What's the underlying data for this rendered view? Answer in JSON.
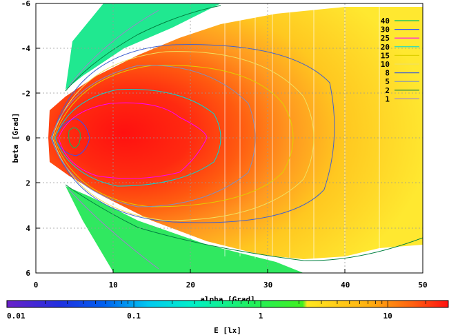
{
  "chart_data": {
    "type": "heatmap",
    "xlabel": "alpha [Grad]",
    "ylabel": "beta [Grad]",
    "xlim": [
      0,
      50
    ],
    "ylim": [
      6,
      -6
    ],
    "x_ticks": [
      "0",
      "10",
      "20",
      "30",
      "40",
      "50"
    ],
    "y_ticks": [
      "-6",
      "-4",
      "-2",
      "0",
      "2",
      "4",
      "6"
    ],
    "grid": true,
    "colorbar": {
      "label": "E [lx]",
      "scale": "log",
      "range": [
        0.01,
        30
      ],
      "ticks": [
        "0.01",
        "0.1",
        "1",
        "10"
      ]
    },
    "contour_legend": {
      "placement": "top-right",
      "levels": [
        {
          "label": "40",
          "color": "#00c060"
        },
        {
          "label": "30",
          "color": "#3050ff"
        },
        {
          "label": "25",
          "color": "#ff00ff"
        },
        {
          "label": "20",
          "color": "#00d8d8"
        },
        {
          "label": "15",
          "color": "#e0d000"
        },
        {
          "label": "10",
          "color": "#f0e060"
        },
        {
          "label": "8",
          "color": "#4060d0"
        },
        {
          "label": "5",
          "color": "#8090c0"
        },
        {
          "label": "2",
          "color": "#008040"
        },
        {
          "label": "1",
          "color": "#a080d0"
        }
      ]
    }
  }
}
